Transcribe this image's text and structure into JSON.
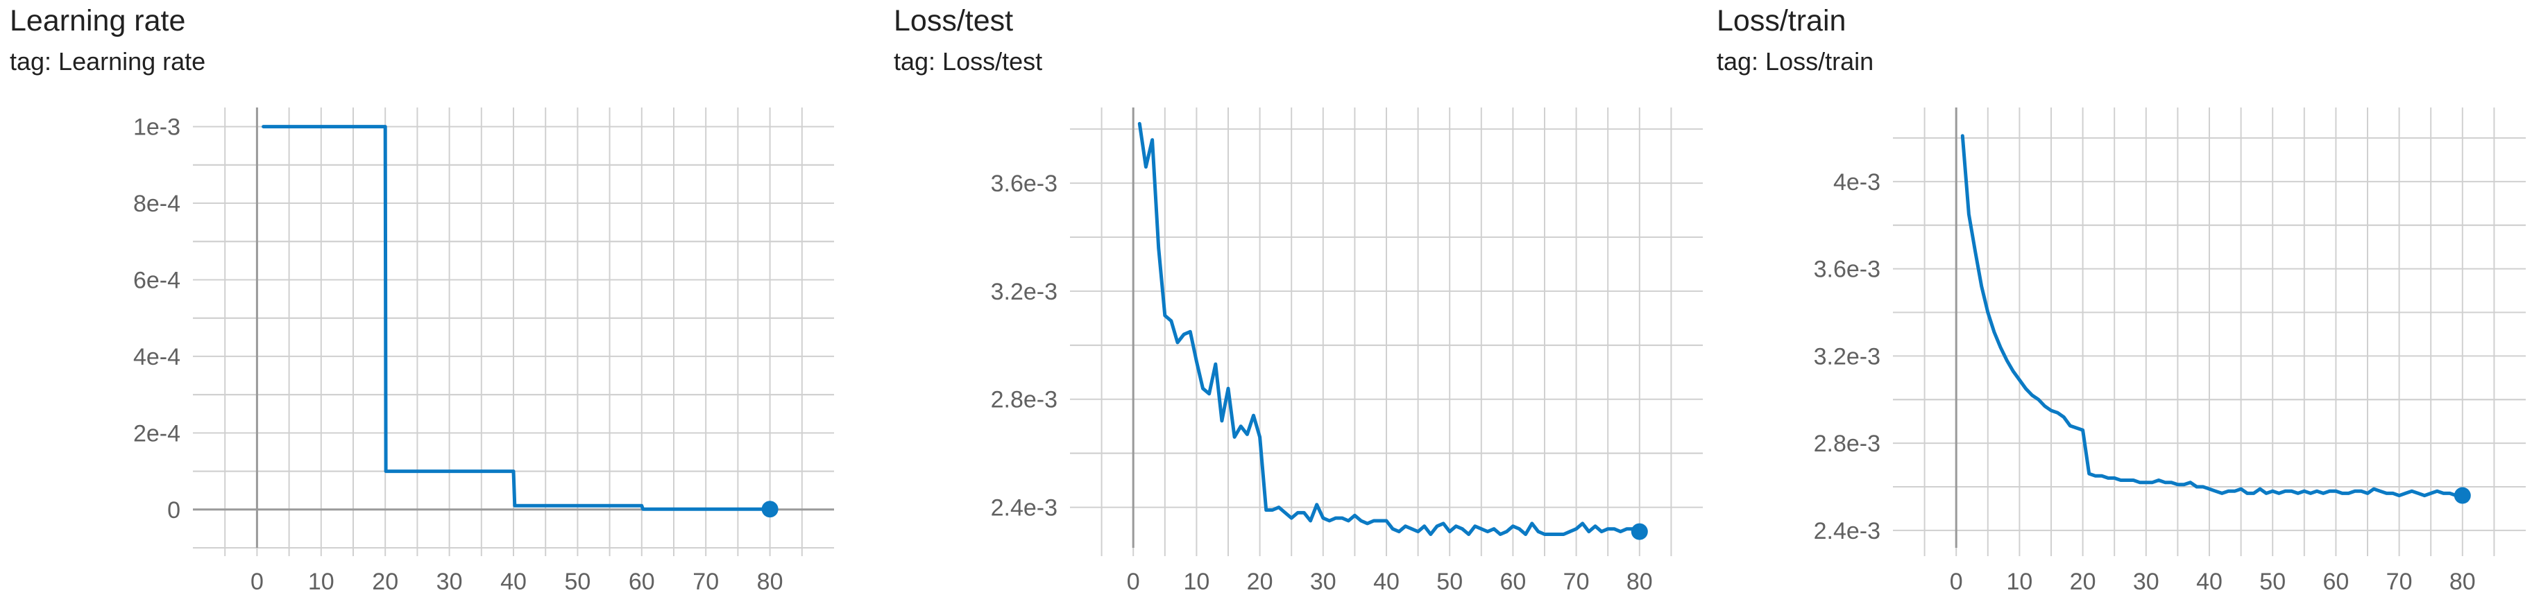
{
  "theme": {
    "line_color": "#0b7ac4"
  },
  "cards": [
    {
      "title": "Learning rate",
      "tag": "tag: Learning rate"
    },
    {
      "title": "Loss/test",
      "tag": "tag: Loss/test"
    },
    {
      "title": "Loss/train",
      "tag": "tag: Loss/train"
    }
  ],
  "chart_data": [
    {
      "type": "line",
      "title": "Learning rate",
      "xlim": [
        -10,
        90
      ],
      "ylim": [
        -0.0001,
        0.00105
      ],
      "x_ticks": [
        0,
        10,
        20,
        30,
        40,
        50,
        60,
        70,
        80
      ],
      "x_tick_labels": [
        "0",
        "10",
        "20",
        "30",
        "40",
        "50",
        "60",
        "70",
        "80"
      ],
      "y_ticks": [
        0,
        0.0002,
        0.0004,
        0.0006,
        0.0008,
        0.001
      ],
      "y_tick_labels": [
        "0",
        "2e-4",
        "4e-4",
        "6e-4",
        "8e-4",
        "1e-3"
      ],
      "grid": true,
      "series": [
        {
          "x": [
            1,
            20,
            20.1,
            40,
            40.2,
            60,
            60.2,
            80
          ],
          "y": [
            0.001,
            0.001,
            0.0001,
            0.0001,
            1e-05,
            1e-05,
            1e-06,
            1e-06
          ],
          "last_point_marker": true
        }
      ]
    },
    {
      "type": "line",
      "title": "Loss/test",
      "xlim": [
        -10,
        90
      ],
      "ylim": [
        0.00225,
        0.00388
      ],
      "x_ticks": [
        0,
        10,
        20,
        30,
        40,
        50,
        60,
        70,
        80
      ],
      "x_tick_labels": [
        "0",
        "10",
        "20",
        "30",
        "40",
        "50",
        "60",
        "70",
        "80"
      ],
      "y_ticks": [
        0.0024,
        0.0028,
        0.0032,
        0.0036
      ],
      "y_tick_labels": [
        "2.4e-3",
        "2.8e-3",
        "3.2e-3",
        "3.6e-3"
      ],
      "grid": true,
      "series": [
        {
          "x": [
            1,
            2,
            3,
            4,
            5,
            6,
            7,
            8,
            9,
            10,
            11,
            12,
            13,
            14,
            15,
            16,
            17,
            18,
            19,
            20,
            21,
            22,
            23,
            24,
            25,
            26,
            27,
            28,
            29,
            30,
            31,
            32,
            33,
            34,
            35,
            36,
            37,
            38,
            39,
            40,
            41,
            42,
            43,
            44,
            45,
            46,
            47,
            48,
            49,
            50,
            51,
            52,
            53,
            54,
            55,
            56,
            57,
            58,
            59,
            60,
            61,
            62,
            63,
            64,
            65,
            66,
            67,
            68,
            69,
            70,
            71,
            72,
            73,
            74,
            75,
            76,
            77,
            78,
            79,
            80
          ],
          "y": [
            0.00382,
            0.00366,
            0.00376,
            0.00336,
            0.00311,
            0.00309,
            0.00301,
            0.00304,
            0.00305,
            0.00294,
            0.00284,
            0.00282,
            0.00293,
            0.00272,
            0.00284,
            0.00266,
            0.0027,
            0.00267,
            0.00274,
            0.00266,
            0.00239,
            0.00239,
            0.0024,
            0.00238,
            0.00236,
            0.00238,
            0.00238,
            0.00235,
            0.00241,
            0.00236,
            0.00235,
            0.00236,
            0.00236,
            0.00235,
            0.00237,
            0.00235,
            0.00234,
            0.00235,
            0.00235,
            0.00235,
            0.00232,
            0.00231,
            0.00233,
            0.00232,
            0.00231,
            0.00233,
            0.0023,
            0.00233,
            0.00234,
            0.00231,
            0.00233,
            0.00232,
            0.0023,
            0.00233,
            0.00232,
            0.00231,
            0.00232,
            0.0023,
            0.00231,
            0.00233,
            0.00232,
            0.0023,
            0.00234,
            0.00231,
            0.0023,
            0.0023,
            0.0023,
            0.0023,
            0.00231,
            0.00232,
            0.00234,
            0.00231,
            0.00233,
            0.00231,
            0.00232,
            0.00232,
            0.00231,
            0.00232,
            0.00232,
            0.00231
          ],
          "last_point_marker": true
        }
      ]
    },
    {
      "type": "line",
      "title": "Loss/train",
      "xlim": [
        -10,
        90
      ],
      "ylim": [
        0.00232,
        0.00434
      ],
      "x_ticks": [
        0,
        10,
        20,
        30,
        40,
        50,
        60,
        70,
        80
      ],
      "x_tick_labels": [
        "0",
        "10",
        "20",
        "30",
        "40",
        "50",
        "60",
        "70",
        "80"
      ],
      "y_ticks": [
        0.0024,
        0.0028,
        0.0032,
        0.0036,
        0.004
      ],
      "y_tick_labels": [
        "2.4e-3",
        "2.8e-3",
        "3.2e-3",
        "3.6e-3",
        "4e-3"
      ],
      "grid": true,
      "series": [
        {
          "x": [
            1,
            2,
            3,
            4,
            5,
            6,
            7,
            8,
            9,
            10,
            11,
            12,
            13,
            14,
            15,
            16,
            17,
            18,
            19,
            20,
            21,
            22,
            23,
            24,
            25,
            26,
            27,
            28,
            29,
            30,
            31,
            32,
            33,
            34,
            35,
            36,
            37,
            38,
            39,
            40,
            41,
            42,
            43,
            44,
            45,
            46,
            47,
            48,
            49,
            50,
            51,
            52,
            53,
            54,
            55,
            56,
            57,
            58,
            59,
            60,
            61,
            62,
            63,
            64,
            65,
            66,
            67,
            68,
            69,
            70,
            71,
            72,
            73,
            74,
            75,
            76,
            77,
            78,
            79,
            80
          ],
          "y": [
            0.00421,
            0.00385,
            0.00368,
            0.00352,
            0.0034,
            0.00331,
            0.00324,
            0.00318,
            0.00313,
            0.00309,
            0.00305,
            0.00302,
            0.003,
            0.00297,
            0.00295,
            0.00294,
            0.00292,
            0.00288,
            0.00287,
            0.00286,
            0.00266,
            0.00265,
            0.00265,
            0.00264,
            0.00264,
            0.00263,
            0.00263,
            0.00263,
            0.00262,
            0.00262,
            0.00262,
            0.00263,
            0.00262,
            0.00262,
            0.00261,
            0.00261,
            0.00262,
            0.0026,
            0.0026,
            0.00259,
            0.00258,
            0.00257,
            0.00258,
            0.00258,
            0.00259,
            0.00257,
            0.00257,
            0.00259,
            0.00257,
            0.00258,
            0.00257,
            0.00258,
            0.00258,
            0.00257,
            0.00258,
            0.00257,
            0.00258,
            0.00257,
            0.00258,
            0.00258,
            0.00257,
            0.00257,
            0.00258,
            0.00258,
            0.00257,
            0.00259,
            0.00258,
            0.00257,
            0.00257,
            0.00256,
            0.00257,
            0.00258,
            0.00257,
            0.00256,
            0.00257,
            0.00258,
            0.00257,
            0.00257,
            0.00256,
            0.00256
          ],
          "last_point_marker": true
        }
      ]
    }
  ]
}
